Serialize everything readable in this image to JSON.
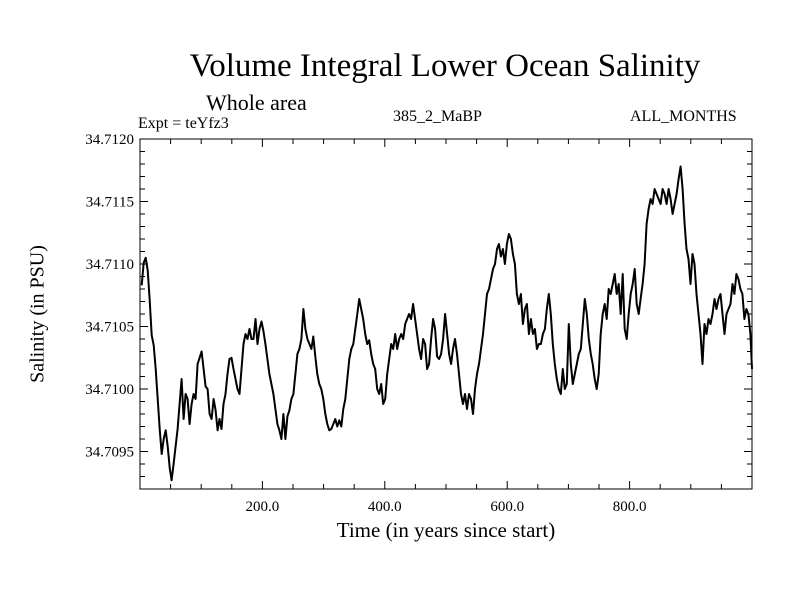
{
  "header": {
    "title": "Volume Integral Lower Ocean Salinity",
    "subtitle": "Whole area",
    "experiment": "Expt = teYfz3",
    "run_id": "385_2_MaBP",
    "period": "ALL_MONTHS"
  },
  "chart_data": {
    "type": "line",
    "title": "Volume Integral Lower Ocean Salinity",
    "subtitle": "Whole area",
    "annotations": [
      "Expt = teYfz3",
      "385_2_MaBP",
      "ALL_MONTHS"
    ],
    "xlabel": "Time (in years since start)",
    "ylabel": "Salinity (in PSU)",
    "xlim": [
      0,
      1000
    ],
    "ylim": [
      34.7092,
      34.712
    ],
    "xticks": [
      200,
      400,
      600,
      800
    ],
    "xtick_labels": [
      "200.0",
      "400.0",
      "600.0",
      "800.0"
    ],
    "x_minor_step": 50,
    "yticks": [
      34.7095,
      34.71,
      34.7105,
      34.711,
      34.7115,
      34.712
    ],
    "ytick_labels": [
      "34.7095",
      "34.7100",
      "34.7105",
      "34.7110",
      "34.7115",
      "34.7120"
    ],
    "y_minor_step": 0.0001,
    "grid": false,
    "line_color": "#000000",
    "series": [
      {
        "name": "Lower Ocean Salinity",
        "x_start": 2.8,
        "x_step": 3.261,
        "values": [
          34.71083,
          34.71101,
          34.71105,
          34.71095,
          34.71071,
          34.71043,
          34.71035,
          34.71016,
          34.70992,
          34.70968,
          34.70948,
          34.7096,
          34.70967,
          34.70954,
          34.70937,
          34.70927,
          34.7094,
          34.70954,
          34.70968,
          34.70988,
          34.71008,
          34.70976,
          34.70996,
          34.70992,
          34.70972,
          34.70988,
          34.70996,
          34.70992,
          34.7102,
          34.71025,
          34.7103,
          34.71016,
          34.71002,
          34.71,
          34.7098,
          34.70976,
          34.70992,
          34.70983,
          34.70967,
          34.70976,
          34.70968,
          34.70988,
          34.70996,
          34.71012,
          34.71024,
          34.71025,
          34.71016,
          34.71008,
          34.71,
          34.70996,
          34.71016,
          34.71036,
          34.71044,
          34.7104,
          34.71048,
          34.7104,
          34.7104,
          34.71056,
          34.71036,
          34.71048,
          34.71054,
          34.71046,
          34.71036,
          34.71024,
          34.71012,
          34.71004,
          34.70996,
          34.70984,
          34.70972,
          34.70967,
          34.7096,
          34.7098,
          34.7096,
          34.70978,
          34.70983,
          34.70992,
          34.70996,
          34.71012,
          34.71028,
          34.71032,
          34.7104,
          34.71064,
          34.71048,
          34.7104,
          34.71036,
          34.71032,
          34.71042,
          34.71026,
          34.71012,
          34.71004,
          34.71,
          34.70992,
          34.7098,
          34.70972,
          34.70967,
          34.70968,
          34.70972,
          34.70976,
          34.7097,
          34.70975,
          34.7097,
          34.70984,
          34.70992,
          34.71008,
          34.71024,
          34.71032,
          34.71036,
          34.71048,
          34.7106,
          34.71072,
          34.71064,
          34.71056,
          34.71044,
          34.71036,
          34.71039,
          34.71028,
          34.7102,
          34.71016,
          34.71,
          34.70996,
          34.71004,
          34.70988,
          34.70992,
          34.71012,
          34.71024,
          34.71036,
          34.71032,
          34.71044,
          34.71032,
          34.7104,
          34.71044,
          34.7104,
          34.71052,
          34.71056,
          34.7106,
          34.71056,
          34.71068,
          34.71056,
          34.71044,
          34.71032,
          34.71024,
          34.7104,
          34.71036,
          34.71016,
          34.7102,
          34.7104,
          34.71056,
          34.71048,
          34.71026,
          34.71024,
          34.71028,
          34.7104,
          34.7106,
          34.71044,
          34.71028,
          34.7102,
          34.71032,
          34.7104,
          34.71028,
          34.71012,
          34.70996,
          34.70988,
          34.70996,
          34.70984,
          34.70996,
          34.70992,
          34.7098,
          34.71,
          34.71012,
          34.7102,
          34.71032,
          34.71044,
          34.7106,
          34.71076,
          34.7108,
          34.71088,
          34.71096,
          34.711,
          34.71112,
          34.71116,
          34.71106,
          34.71112,
          34.711,
          34.71116,
          34.71124,
          34.7112,
          34.71108,
          34.711,
          34.71076,
          34.71068,
          34.71076,
          34.71052,
          34.71064,
          34.71068,
          34.71044,
          34.71056,
          34.71044,
          34.71048,
          34.71032,
          34.71036,
          34.71036,
          34.71044,
          34.71048,
          34.71064,
          34.71076,
          34.7106,
          34.71036,
          34.7102,
          34.71008,
          34.71,
          34.70996,
          34.71016,
          34.71,
          34.71004,
          34.71052,
          34.7102,
          34.71004,
          34.71012,
          34.7102,
          34.71028,
          34.71032,
          34.71052,
          34.71072,
          34.7106,
          34.7104,
          34.71028,
          34.7102,
          34.71008,
          34.71,
          34.71012,
          34.71044,
          34.7106,
          34.71068,
          34.71056,
          34.7108,
          34.71076,
          34.71084,
          34.71092,
          34.71076,
          34.71084,
          34.7106,
          34.71092,
          34.71048,
          34.7104,
          34.7106,
          34.71076,
          34.71084,
          34.71096,
          34.71068,
          34.7106,
          34.71072,
          34.71084,
          34.711,
          34.71132,
          34.71144,
          34.71152,
          34.71148,
          34.7116,
          34.71156,
          34.71152,
          34.71148,
          34.7116,
          34.71156,
          34.71148,
          34.7116,
          34.71152,
          34.7114,
          34.71148,
          34.71156,
          34.71168,
          34.71178,
          34.7116,
          34.71132,
          34.71112,
          34.71104,
          34.71084,
          34.71108,
          34.711,
          34.71076,
          34.7106,
          34.71044,
          34.7102,
          34.71052,
          34.71044,
          34.71056,
          34.71052,
          34.7106,
          34.71072,
          34.71064,
          34.71072,
          34.71076,
          34.7106,
          34.71044,
          34.7106,
          34.71064,
          34.71068,
          34.71084,
          34.71076,
          34.71092,
          34.71088,
          34.7108,
          34.71076,
          34.71056,
          34.71064,
          34.7106,
          34.71044,
          34.71016
        ]
      }
    ]
  }
}
